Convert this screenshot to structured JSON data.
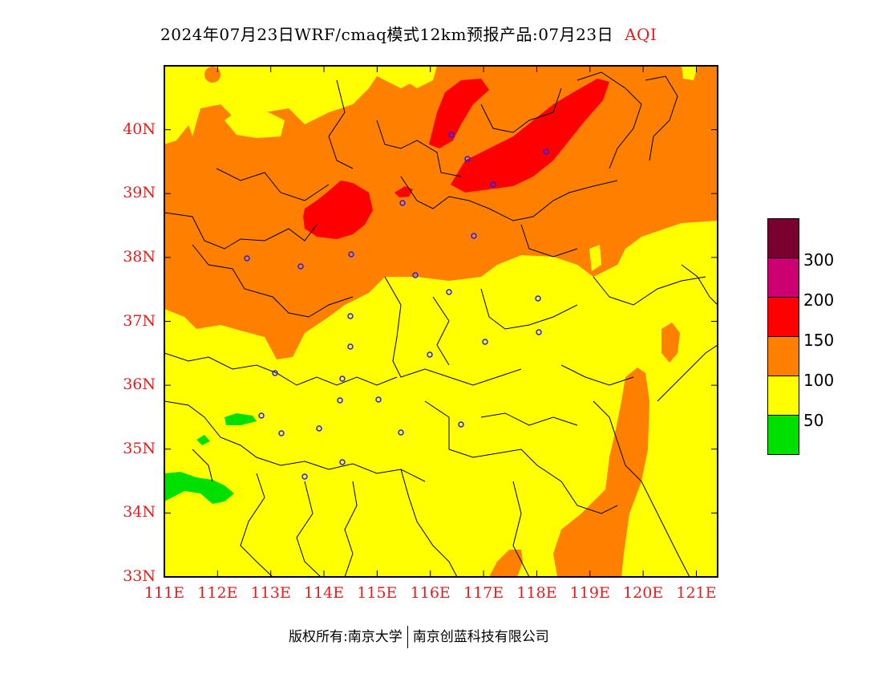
{
  "header": {
    "title": "2024年07月23日WRF/cmaq模式12km预报产品:07月23日",
    "product": "AQI"
  },
  "map": {
    "lat_labels": [
      "40N",
      "39N",
      "38N",
      "37N",
      "36N",
      "35N",
      "34N",
      "33N"
    ],
    "lon_labels": [
      "111E",
      "112E",
      "113E",
      "114E",
      "115E",
      "116E",
      "117E",
      "118E",
      "119E",
      "120E",
      "121E"
    ],
    "lat_range": [
      33,
      41
    ],
    "lon_range": [
      111,
      121.4
    ],
    "colors": {
      "good": "#00e000",
      "moderate": "#ffff00",
      "sensitive": "#ff8000",
      "unhealthy": "#ff0000",
      "very_unhealthy": "#cc0070",
      "hazardous": "#7a0030"
    }
  },
  "legend": {
    "labels": [
      "300",
      "200",
      "150",
      "100",
      "50"
    ],
    "colors": [
      "#7a0030",
      "#cc0070",
      "#ff0000",
      "#ff8000",
      "#ffff00",
      "#00e000"
    ]
  },
  "footer": {
    "left": "版权所有:南京大学",
    "right": "南京创蓝科技有限公司"
  }
}
